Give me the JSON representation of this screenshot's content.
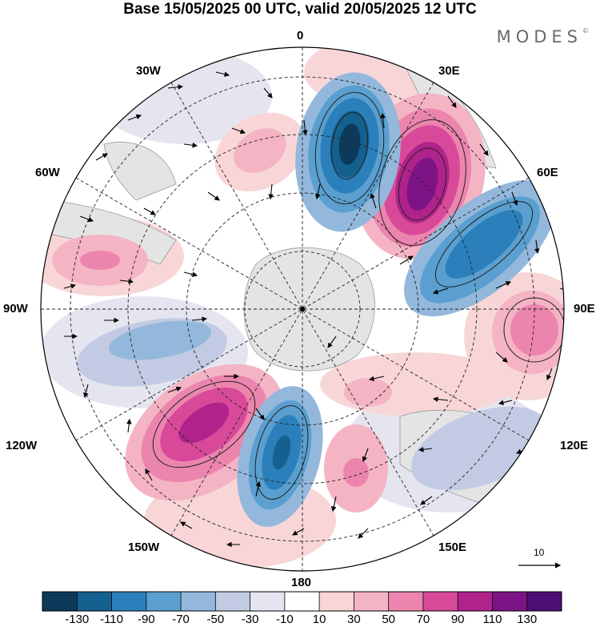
{
  "title": "Base 15/05/2025 00 UTC, valid 20/05/2025 12 UTC",
  "brand": "MODES",
  "brand_mark": "©",
  "longitude_labels": {
    "top": "0",
    "lon30w": "30W",
    "lon30e": "30E",
    "lon60w": "60W",
    "lon60e": "60E",
    "lon90w": "90W",
    "lon90e": "90E",
    "lon120w": "120W",
    "lon120e": "120E",
    "lon150w": "150W",
    "lon150e": "150E",
    "bottom": "180"
  },
  "reference_vector": {
    "value": "10"
  },
  "colorbar": {
    "colors": [
      "#0d3a5a",
      "#14608f",
      "#2b80bb",
      "#5a9fcf",
      "#93b8dc",
      "#c2cbe3",
      "#e5e5f0",
      "#ffffff",
      "#f8d6d8",
      "#f4b4c4",
      "#ec85ae",
      "#d84a99",
      "#b0238a",
      "#7d1486",
      "#4d0f73"
    ],
    "ticks": [
      "-130",
      "-110",
      "-90",
      "-70",
      "-50",
      "-30",
      "-10",
      "10",
      "30",
      "50",
      "70",
      "90",
      "110",
      "130"
    ]
  }
}
